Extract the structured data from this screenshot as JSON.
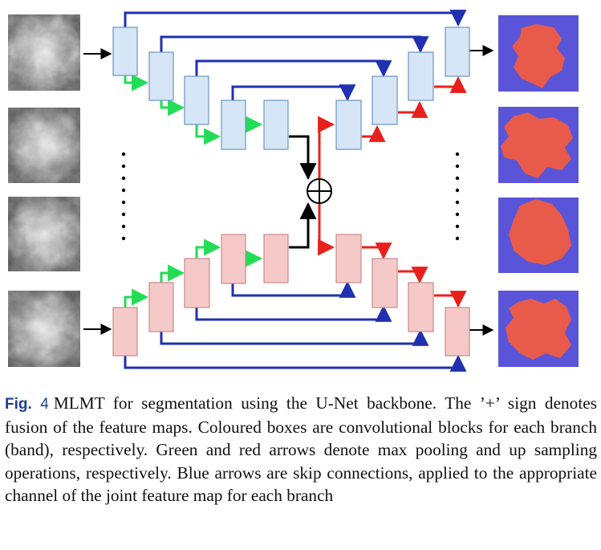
{
  "caption": {
    "label_prefix": "Fig.",
    "label_number": "4",
    "text": "MLMT for segmentation using the U-Net backbone. The ’+’ sign denotes fusion of the feature maps. Coloured boxes are convolutional blocks for each branch (band), respectively. Green and red arrows denote max pooling and up sampling operations, respectively. Blue arrows are skip connections, applied to the appropriate channel of the joint feature map for each branch"
  },
  "fusion_symbol": "⊕",
  "colors": {
    "blue_block_fill": "#d6e6f7",
    "blue_block_stroke": "#6b94c4",
    "pink_block_fill": "#f6c9c9",
    "pink_block_stroke": "#c98a8a",
    "green_arrow": "#22dd55",
    "red_arrow": "#e8201c",
    "blue_arrow": "#2030b0",
    "black_arrow": "#000000",
    "mask_background": "#5a55d8",
    "mask_region": "#e85a4a",
    "caption_label": "#1f3f8f"
  }
}
